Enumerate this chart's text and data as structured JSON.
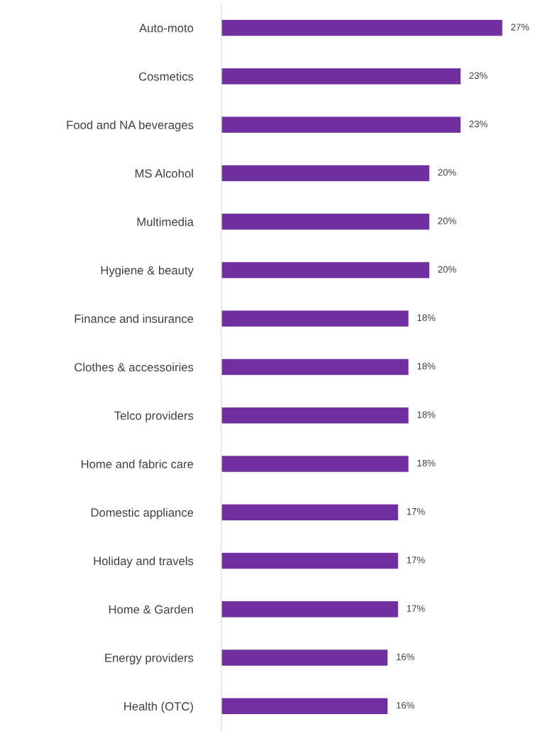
{
  "chart_data": {
    "type": "bar",
    "orientation": "horizontal",
    "categories": [
      "Auto-moto",
      "Cosmetics",
      "Food and NA beverages",
      "MS Alcohol",
      "Multimedia",
      "Hygiene & beauty",
      "Finance and insurance",
      "Clothes & accessoiries",
      "Telco providers",
      "Home and fabric care",
      "Domestic appliance",
      "Holiday and travels",
      "Home & Garden",
      "Energy providers",
      "Health (OTC)"
    ],
    "values": [
      27,
      23,
      23,
      20,
      20,
      20,
      18,
      18,
      18,
      18,
      17,
      17,
      17,
      16,
      16
    ],
    "value_labels": [
      "27%",
      "23%",
      "23%",
      "20%",
      "20%",
      "20%",
      "18%",
      "18%",
      "18%",
      "18%",
      "17%",
      "17%",
      "17%",
      "16%",
      "16%"
    ],
    "color": "#7030a0",
    "tick_labels": "y",
    "grid": false,
    "legend": false
  }
}
